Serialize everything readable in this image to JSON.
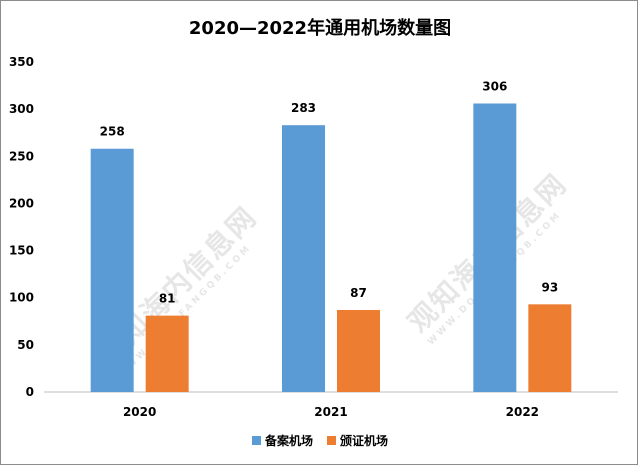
{
  "chart_data": {
    "type": "bar",
    "title": "2020—2022年通用机场数量图",
    "categories": [
      "2020",
      "2021",
      "2022"
    ],
    "series": [
      {
        "name": "备案机场",
        "values": [
          258,
          283,
          306
        ],
        "color": "#5b9bd5"
      },
      {
        "name": "颁证机场",
        "values": [
          81,
          87,
          93
        ],
        "color": "#ed7d31"
      }
    ],
    "ylim": [
      0,
      350
    ],
    "yticks": [
      0,
      50,
      100,
      150,
      200,
      250,
      300,
      350
    ],
    "grid": false,
    "legend_position": "bottom"
  },
  "watermark": {
    "text": "观知海内信息网",
    "url": "WWW.DONGFANGQB.COM"
  }
}
